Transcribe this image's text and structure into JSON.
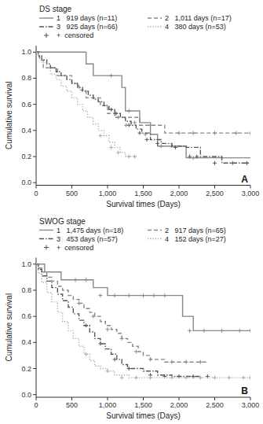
{
  "chart_data": [
    {
      "type": "step",
      "title": "DS stage",
      "annotations": [
        "A"
      ],
      "xlabel": "Survival times (Days)",
      "ylabel": "Cumulative survival",
      "xlim": [
        0,
        3000
      ],
      "ylim": [
        -0.02,
        1.05
      ],
      "xticks": [
        0,
        500,
        {
          "value": 1000,
          "label": "1,000"
        },
        {
          "value": 1500,
          "label": "1,500"
        },
        {
          "value": 2000,
          "label": "2,000"
        },
        {
          "value": 2500,
          "label": "2,500"
        },
        {
          "value": 3000,
          "label": "3,000"
        }
      ],
      "yticks": [
        {
          "value": 0,
          "label": "0.0"
        },
        0.2,
        0.4,
        0.6,
        0.8,
        {
          "value": 1,
          "label": "1.0"
        }
      ],
      "grid": false,
      "legend": "top",
      "censor_legend": {
        "name": "+  censored",
        "color": "#555555"
      },
      "series": [
        {
          "name": "1   919 days (n=11)",
          "color": "#888888",
          "line_style": "solid",
          "x": [
            0,
            100,
            200,
            300,
            550,
            700,
            800,
            1000,
            1100,
            1200,
            1250,
            1350,
            1450,
            1600,
            1700,
            2000,
            2050,
            2100,
            3000
          ],
          "values": [
            1.0,
            1.0,
            1.0,
            1.0,
            1.0,
            0.91,
            0.82,
            0.82,
            0.82,
            0.73,
            0.55,
            0.55,
            0.46,
            0.37,
            0.28,
            0.28,
            0.28,
            0.19,
            0.19
          ],
          "censor_x": [
            1050,
            1300,
            1380,
            1530,
            1750,
            1900,
            2200
          ],
          "censor_values": [
            0.82,
            0.55,
            0.46,
            0.37,
            0.28,
            0.28,
            0.19
          ]
        },
        {
          "name": "2   1,011 days (n=17)",
          "color": "#888888",
          "line_style": "dashed",
          "x": [
            0,
            50,
            100,
            200,
            300,
            400,
            500,
            600,
            700,
            750,
            900,
            1000,
            1100,
            1200,
            1350,
            1450,
            1700,
            1800,
            2100,
            2500,
            3000
          ],
          "values": [
            1.0,
            0.94,
            0.88,
            0.88,
            0.82,
            0.82,
            0.76,
            0.71,
            0.65,
            0.65,
            0.59,
            0.53,
            0.5,
            0.5,
            0.5,
            0.44,
            0.44,
            0.38,
            0.38,
            0.38,
            0.38
          ],
          "censor_x": [
            1150,
            1260,
            1600,
            2000,
            2200,
            2500,
            2800,
            3000
          ],
          "censor_values": [
            0.5,
            0.44,
            0.44,
            0.38,
            0.38,
            0.38,
            0.38,
            0.38
          ]
        },
        {
          "name": "3   925 days (n=66)",
          "color": "#555555",
          "line_style": "dashdot",
          "x": [
            0,
            30,
            80,
            150,
            200,
            280,
            350,
            430,
            500,
            580,
            650,
            730,
            800,
            870,
            950,
            1020,
            1100,
            1180,
            1250,
            1330,
            1400,
            1480,
            1600,
            1750,
            1900,
            2100,
            2300,
            2600,
            2800,
            3000
          ],
          "values": [
            1.0,
            0.97,
            0.94,
            0.91,
            0.88,
            0.85,
            0.82,
            0.79,
            0.76,
            0.73,
            0.7,
            0.67,
            0.64,
            0.62,
            0.59,
            0.56,
            0.53,
            0.5,
            0.47,
            0.44,
            0.41,
            0.38,
            0.33,
            0.3,
            0.28,
            0.27,
            0.2,
            0.15,
            0.15,
            0.15
          ],
          "censor_x": [
            1050,
            1120,
            1300,
            1450,
            1550,
            1700,
            1950,
            2150,
            2250,
            2500,
            2750,
            2950
          ],
          "censor_values": [
            0.56,
            0.53,
            0.44,
            0.38,
            0.33,
            0.3,
            0.27,
            0.2,
            0.2,
            0.15,
            0.15,
            0.15
          ]
        },
        {
          "name": "4   380 days (n=53)",
          "color": "#aaaaaa",
          "line_style": "dotted",
          "x": [
            0,
            30,
            80,
            150,
            200,
            280,
            350,
            430,
            500,
            580,
            650,
            720,
            800,
            870,
            950,
            1020,
            1100,
            1180,
            1250,
            1400
          ],
          "values": [
            1.0,
            0.96,
            0.92,
            0.88,
            0.83,
            0.79,
            0.74,
            0.7,
            0.65,
            0.6,
            0.55,
            0.5,
            0.45,
            0.4,
            0.36,
            0.31,
            0.27,
            0.23,
            0.2,
            0.2
          ],
          "censor_x": [
            900,
            1050,
            1150,
            1300,
            1380
          ],
          "censor_values": [
            0.36,
            0.27,
            0.23,
            0.2,
            0.2
          ]
        }
      ]
    },
    {
      "type": "step",
      "title": "SWOG stage",
      "annotations": [
        "B"
      ],
      "xlabel": "Survival times (Days)",
      "ylabel": "Cumulative survival",
      "xlim": [
        0,
        3000
      ],
      "ylim": [
        -0.02,
        1.05
      ],
      "xticks": [
        0,
        500,
        {
          "value": 1000,
          "label": "1,000"
        },
        {
          "value": 1500,
          "label": "1,500"
        },
        {
          "value": 2000,
          "label": "2,000"
        },
        {
          "value": 2500,
          "label": "2,500"
        },
        {
          "value": 3000,
          "label": "3,000"
        }
      ],
      "yticks": [
        {
          "value": 0,
          "label": "0.0"
        },
        0.2,
        0.4,
        0.6,
        0.8,
        {
          "value": 1,
          "label": "1.0"
        }
      ],
      "grid": false,
      "legend": "top",
      "censor_legend": {
        "name": "+  censored",
        "color": "#555555"
      },
      "series": [
        {
          "name": "1   1,475 days (n=18)",
          "color": "#888888",
          "line_style": "solid",
          "x": [
            0,
            50,
            120,
            200,
            350,
            500,
            650,
            800,
            1000,
            1200,
            1400,
            1480,
            1600,
            1700,
            1800,
            1900,
            2000,
            2050,
            2200,
            2400,
            3000
          ],
          "values": [
            1.0,
            1.0,
            0.94,
            0.94,
            0.88,
            0.88,
            0.88,
            0.82,
            0.76,
            0.76,
            0.76,
            0.76,
            0.76,
            0.76,
            0.76,
            0.76,
            0.76,
            0.6,
            0.49,
            0.49,
            0.49
          ],
          "censor_x": [
            550,
            700,
            900,
            1100,
            1300,
            1500,
            1650,
            1800,
            2150,
            2350,
            2600,
            2850,
            3000
          ],
          "censor_values": [
            0.88,
            0.88,
            0.76,
            0.76,
            0.76,
            0.76,
            0.76,
            0.76,
            0.49,
            0.49,
            0.49,
            0.49,
            0.49
          ]
        },
        {
          "name": "2   917 days (n=65)",
          "color": "#888888",
          "line_style": "dashed",
          "x": [
            0,
            30,
            80,
            150,
            220,
            300,
            370,
            450,
            520,
            600,
            670,
            750,
            820,
            900,
            970,
            1050,
            1130,
            1200,
            1280,
            1350,
            1430,
            1500,
            1600,
            1800,
            2000,
            2200,
            2400
          ],
          "values": [
            1.0,
            0.97,
            0.94,
            0.9,
            0.87,
            0.83,
            0.8,
            0.76,
            0.73,
            0.7,
            0.66,
            0.63,
            0.6,
            0.56,
            0.53,
            0.5,
            0.47,
            0.43,
            0.4,
            0.37,
            0.33,
            0.3,
            0.27,
            0.25,
            0.25,
            0.25,
            0.25
          ],
          "censor_x": [
            600,
            800,
            1000,
            1200,
            1400,
            1600,
            1900,
            2100,
            2300
          ],
          "censor_values": [
            0.7,
            0.6,
            0.5,
            0.43,
            0.33,
            0.27,
            0.25,
            0.25,
            0.25
          ]
        },
        {
          "name": "3   453 days (n=57)",
          "color": "#555555",
          "line_style": "dashdot",
          "x": [
            0,
            30,
            80,
            150,
            220,
            300,
            370,
            450,
            520,
            600,
            670,
            750,
            820,
            900,
            970,
            1050,
            1130,
            1200,
            1280,
            1350,
            1500,
            1700,
            1900,
            2100,
            2300
          ],
          "values": [
            1.0,
            0.96,
            0.91,
            0.87,
            0.82,
            0.77,
            0.72,
            0.67,
            0.62,
            0.57,
            0.53,
            0.48,
            0.43,
            0.39,
            0.35,
            0.31,
            0.27,
            0.23,
            0.2,
            0.2,
            0.18,
            0.15,
            0.14,
            0.14,
            0.14
          ],
          "censor_x": [
            700,
            900,
            1100,
            1300,
            1600,
            1800,
            2000,
            2200,
            2400
          ],
          "censor_values": [
            0.53,
            0.39,
            0.27,
            0.2,
            0.15,
            0.14,
            0.14,
            0.14,
            0.14
          ]
        },
        {
          "name": "4   152 days (n=27)",
          "color": "#aaaaaa",
          "line_style": "dotted",
          "x": [
            0,
            30,
            80,
            150,
            220,
            300,
            370,
            450,
            520,
            600,
            670,
            750,
            820,
            900,
            1000,
            1100,
            1300,
            1500,
            1800,
            2000,
            2200,
            2400,
            2600,
            2800,
            3000
          ],
          "values": [
            1.0,
            0.93,
            0.86,
            0.78,
            0.71,
            0.63,
            0.56,
            0.49,
            0.43,
            0.37,
            0.31,
            0.26,
            0.22,
            0.2,
            0.18,
            0.15,
            0.13,
            0.13,
            0.13,
            0.13,
            0.13,
            0.13,
            0.13,
            0.13,
            0.13
          ],
          "censor_x": [
            700,
            1000,
            1200,
            1400,
            1600,
            1900,
            2100,
            2300,
            2500,
            2700,
            2900,
            3000
          ],
          "censor_values": [
            0.31,
            0.18,
            0.13,
            0.13,
            0.13,
            0.13,
            0.13,
            0.13,
            0.13,
            0.13,
            0.13,
            0.13
          ]
        }
      ]
    }
  ]
}
